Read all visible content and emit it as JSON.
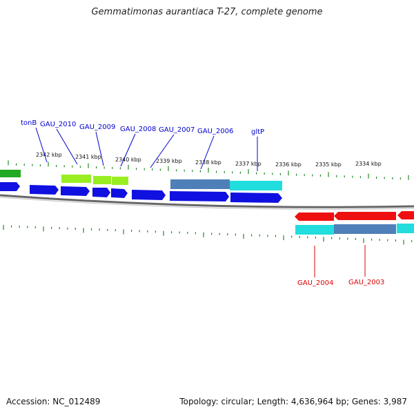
{
  "title": "Gemmatimonas aurantiaca T-27, complete genome",
  "footer": {
    "accession": "Accession: NC_012489",
    "stats": "Topology: circular; Length: 4,636,964 bp; Genes: 3,987"
  },
  "kbp_labels": [
    "2342 kbp",
    "2341 kbp",
    "2340 kbp",
    "2339 kbp",
    "2338 kbp",
    "2337 kbp",
    "2336 kbp",
    "2335 kbp",
    "2334 kbp"
  ],
  "forward_gene_labels": [
    "tonB",
    "GAU_2010",
    "GAU_2009",
    "GAU_2008",
    "GAU_2007",
    "GAU_2006",
    "gltP"
  ],
  "reverse_gene_labels": [
    "GAU_2004",
    "GAU_2003"
  ],
  "colors": {
    "forward_label": "#0000cc",
    "reverse_label": "#dd0000",
    "forward_cds": "#1010e0",
    "reverse_cds": "#ee1010",
    "tick": "#228822",
    "backbone": "#777777",
    "lime": "#99ee22",
    "cyan": "#22dddd",
    "steel": "#4f7fb8",
    "green": "#22aa22"
  }
}
